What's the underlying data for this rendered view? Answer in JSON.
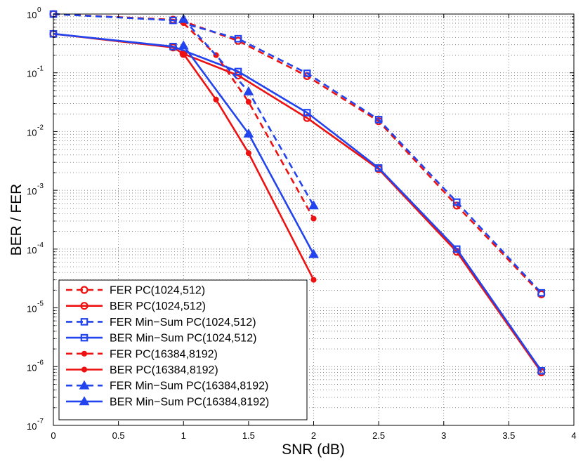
{
  "chart_data": {
    "type": "line",
    "title": "",
    "xlabel": "SNR (dB)",
    "ylabel": "BER / FER",
    "xlim": [
      0,
      4
    ],
    "ylim": [
      1e-07,
      1
    ],
    "yscale": "log",
    "grid": true,
    "legend_position": "bottom-left",
    "x_ticks": [
      {
        "value": 0,
        "label": "0"
      },
      {
        "value": 0.5,
        "label": "0.5"
      },
      {
        "value": 1,
        "label": "1"
      },
      {
        "value": 1.5,
        "label": "1.5"
      },
      {
        "value": 2,
        "label": "2"
      },
      {
        "value": 2.5,
        "label": "2.5"
      },
      {
        "value": 3,
        "label": "3"
      },
      {
        "value": 3.5,
        "label": "3.5"
      },
      {
        "value": 4,
        "label": "4"
      }
    ],
    "y_ticks": [
      {
        "value": 1,
        "base": "10",
        "exp": "0"
      },
      {
        "value": 0.1,
        "base": "10",
        "exp": "-1"
      },
      {
        "value": 0.01,
        "base": "10",
        "exp": "-2"
      },
      {
        "value": 0.001,
        "base": "10",
        "exp": "-3"
      },
      {
        "value": 0.0001,
        "base": "10",
        "exp": "-4"
      },
      {
        "value": 1e-05,
        "base": "10",
        "exp": "-5"
      },
      {
        "value": 1e-06,
        "base": "10",
        "exp": "-6"
      },
      {
        "value": 1e-07,
        "base": "10",
        "exp": "-7"
      }
    ],
    "series": [
      {
        "name": "FER PC(1024,512)",
        "color": "#ee1111",
        "dash": "dashed",
        "marker": "circle-open",
        "x": [
          0,
          0.92,
          1.0,
          1.42,
          1.95,
          2.5,
          3.1,
          3.75
        ],
        "y": [
          1.0,
          0.8,
          0.75,
          0.35,
          0.088,
          0.015,
          0.00055,
          1.7e-05
        ]
      },
      {
        "name": "BER PC(1024,512)",
        "color": "#ee1111",
        "dash": "solid",
        "marker": "circle-open",
        "x": [
          0,
          0.92,
          1.0,
          1.42,
          1.95,
          2.5,
          3.1,
          3.75
        ],
        "y": [
          0.46,
          0.27,
          0.21,
          0.09,
          0.017,
          0.0023,
          9e-05,
          8e-07
        ]
      },
      {
        "name": "FER Min−Sum PC(1024,512)",
        "color": "#2244ee",
        "dash": "dashed",
        "marker": "square-open",
        "x": [
          0,
          0.92,
          1.42,
          1.95,
          2.5,
          3.1,
          3.75
        ],
        "y": [
          1.0,
          0.78,
          0.38,
          0.098,
          0.016,
          0.00063,
          1.8e-05
        ]
      },
      {
        "name": "BER Min−Sum PC(1024,512)",
        "color": "#2244ee",
        "dash": "solid",
        "marker": "square-open",
        "x": [
          0,
          0.92,
          1.42,
          1.95,
          2.5,
          3.1,
          3.75
        ],
        "y": [
          0.46,
          0.28,
          0.105,
          0.021,
          0.0024,
          0.0001,
          8.5e-07
        ]
      },
      {
        "name": "FER PC(16384,8192)",
        "color": "#ee1111",
        "dash": "dashed",
        "marker": "dot",
        "x": [
          1.0,
          1.25,
          1.5,
          2.0
        ],
        "y": [
          0.7,
          0.2,
          0.032,
          0.00033
        ]
      },
      {
        "name": "BER PC(16384,8192)",
        "color": "#ee1111",
        "dash": "solid",
        "marker": "dot",
        "x": [
          1.0,
          1.25,
          1.5,
          2.0
        ],
        "y": [
          0.21,
          0.035,
          0.0043,
          3e-05
        ]
      },
      {
        "name": "FER Min−Sum PC(16384,8192)",
        "color": "#2244ee",
        "dash": "dashed",
        "marker": "triangle",
        "x": [
          1.0,
          1.5,
          2.0
        ],
        "y": [
          0.82,
          0.048,
          0.00055
        ]
      },
      {
        "name": "BER Min−Sum PC(16384,8192)",
        "color": "#2244ee",
        "dash": "solid",
        "marker": "triangle",
        "x": [
          1.0,
          1.5,
          2.0
        ],
        "y": [
          0.29,
          0.0092,
          8.2e-05
        ]
      }
    ]
  }
}
